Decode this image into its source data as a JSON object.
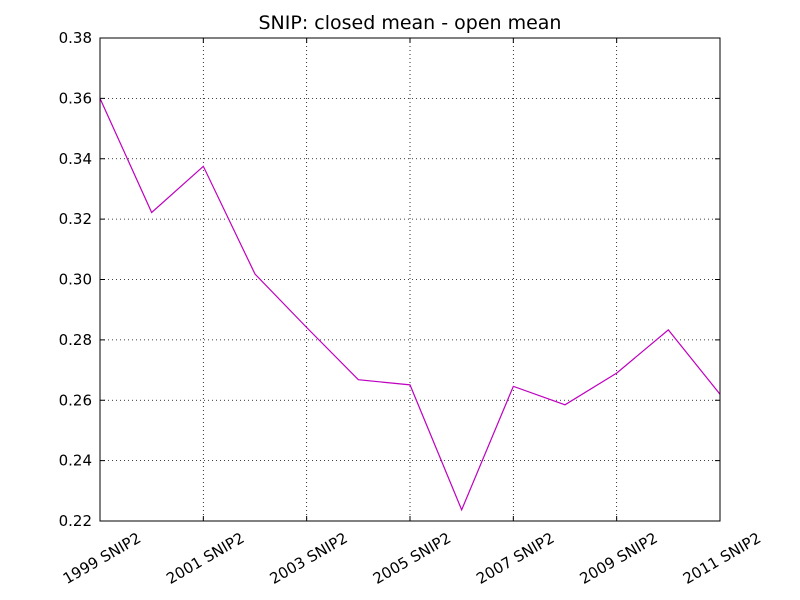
{
  "chart_data": {
    "type": "line",
    "title": "SNIP: closed mean - open mean",
    "xlabel": "",
    "ylabel": "",
    "x": [
      1999,
      2000,
      2001,
      2002,
      2003,
      2004,
      2005,
      2006,
      2007,
      2008,
      2009,
      2010,
      2011
    ],
    "xlim": [
      1999,
      2011
    ],
    "xticks": [
      1999,
      2001,
      2003,
      2005,
      2007,
      2009,
      2011
    ],
    "xtick_labels": [
      "1999 SNIP2",
      "2001 SNIP2",
      "2003 SNIP2",
      "2005 SNIP2",
      "2007 SNIP2",
      "2009 SNIP2",
      "2011 SNIP2"
    ],
    "ylim": [
      0.22,
      0.38
    ],
    "yticks": [
      0.22,
      0.24,
      0.26,
      0.28,
      0.3,
      0.32,
      0.34,
      0.36,
      0.38
    ],
    "ytick_labels": [
      "0.22",
      "0.24",
      "0.26",
      "0.28",
      "0.30",
      "0.32",
      "0.34",
      "0.36",
      "0.38"
    ],
    "grid": true,
    "series": [
      {
        "color": "#bf00bf",
        "values": [
          0.36,
          0.3222,
          0.3375,
          0.3018,
          0.2841,
          0.2668,
          0.2651,
          0.2237,
          0.2646,
          0.2585,
          0.269,
          0.2833,
          0.262
        ]
      }
    ]
  }
}
